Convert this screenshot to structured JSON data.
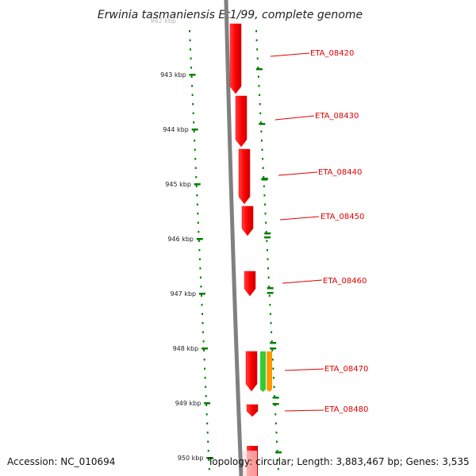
{
  "title": "Erwinia tasmaniensis Et1/99, complete genome",
  "footer": {
    "accession": "Accession: NC_010694",
    "summary": "Topology: circular; Length: 3,883,467 bp; Genes: 3,535"
  },
  "ruler": {
    "unit": "kbp",
    "top_partial_label": "942 kbp",
    "ticks": [
      "943 kbp",
      "944 kbp",
      "945 kbp",
      "946 kbp",
      "947 kbp",
      "948 kbp",
      "949 kbp",
      "950 kbp"
    ]
  },
  "genes": [
    {
      "label": "ETA_08420",
      "color": "#ff0000"
    },
    {
      "label": "ETA_08430",
      "color": "#ff0000"
    },
    {
      "label": "ETA_08440",
      "color": "#ff0000"
    },
    {
      "label": "ETA_08450",
      "color": "#ff0000"
    },
    {
      "label": "ETA_08460",
      "color": "#ff0000"
    },
    {
      "label": "ETA_08470",
      "color": "#ff0000"
    },
    {
      "label": "ETA_08480",
      "color": "#ff0000"
    }
  ],
  "extra_features": [
    {
      "color": "#33cc33"
    },
    {
      "color": "#ff9900"
    }
  ],
  "colors": {
    "backbone": "#808080",
    "ruler_ticks": "#008000",
    "gene_label": "#e00000"
  }
}
